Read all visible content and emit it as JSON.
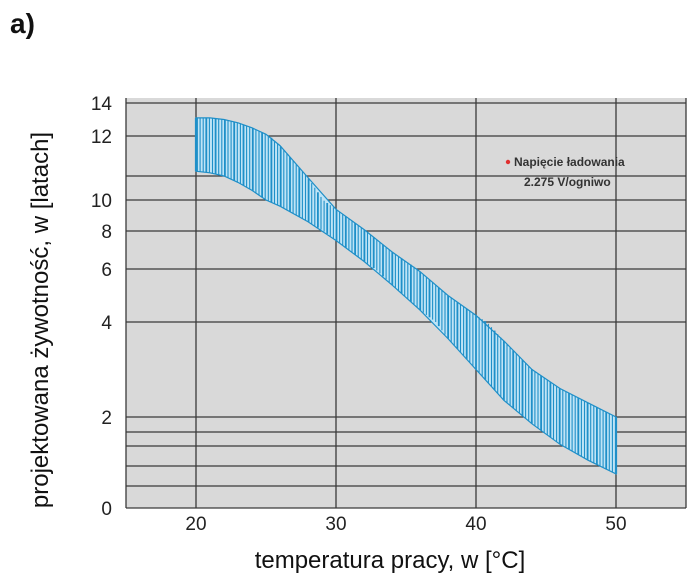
{
  "panel_label": "a)",
  "colors": {
    "plot_background": "#d9d9d9",
    "grid": "#3a3a3a",
    "band_fill": "#bfe4f6",
    "band_stripe": "#1f8fc8",
    "legend_marker": "#e0302f"
  },
  "chart_data": {
    "type": "area",
    "title": "",
    "xlabel": "temperatura pracy, w [°C]",
    "ylabel": "projektowana żywotność, w [latach]",
    "xlim": [
      15,
      55
    ],
    "ylim": [
      0,
      14
    ],
    "x_ticks": [
      20,
      30,
      40,
      50
    ],
    "y_ticks": [
      0,
      2,
      4,
      6,
      8,
      10,
      12,
      14
    ],
    "grid": true,
    "legend_position": "top-right",
    "legend": {
      "line1": "Napięcie ładowania",
      "line2": "2.275 V/ogniwo"
    },
    "series": [
      {
        "x": [
          20,
          21,
          22,
          23,
          24,
          25,
          26,
          28,
          30,
          32,
          34,
          36,
          38,
          40,
          42,
          44,
          46,
          48,
          50
        ],
        "upper": [
          13.1,
          13.1,
          13.0,
          12.8,
          12.5,
          12.1,
          11.7,
          10.7,
          9.4,
          8.1,
          6.9,
          5.9,
          5.0,
          4.25,
          3.6,
          3.0,
          2.6,
          2.3,
          2.0
        ],
        "lower": [
          10.9,
          10.85,
          10.75,
          10.55,
          10.3,
          10.0,
          9.6,
          8.6,
          7.5,
          6.4,
          5.4,
          4.45,
          3.65,
          3.0,
          2.35,
          1.85,
          1.4,
          1.05,
          0.75
        ]
      }
    ]
  }
}
